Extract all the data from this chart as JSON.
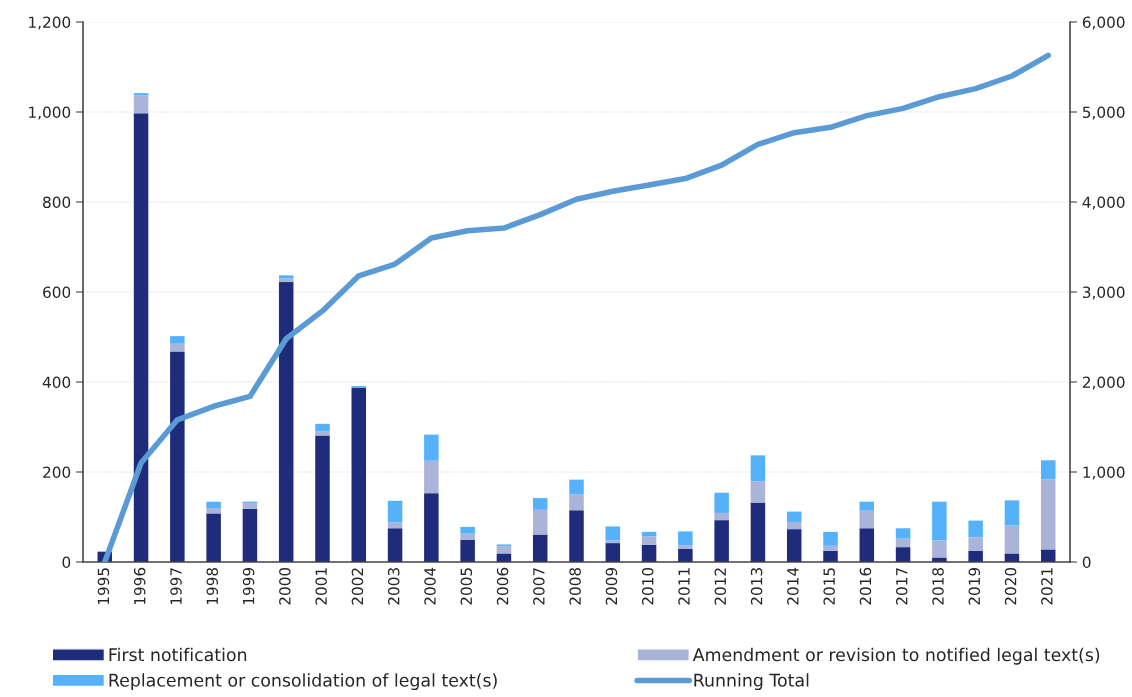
{
  "chart_data": {
    "type": "bar",
    "stacked": true,
    "categories": [
      "1995",
      "1996",
      "1997",
      "1998",
      "1999",
      "2000",
      "2001",
      "2002",
      "2003",
      "2004",
      "2005",
      "2006",
      "2007",
      "2008",
      "2009",
      "2010",
      "2011",
      "2012",
      "2013",
      "2014",
      "2015",
      "2016",
      "2017",
      "2018",
      "2019",
      "2020",
      "2021"
    ],
    "series": [
      {
        "name": "First notification",
        "color": "#1f2c7c",
        "values": [
          23,
          997,
          468,
          108,
          118,
          622,
          281,
          387,
          75,
          153,
          49,
          19,
          61,
          115,
          42,
          38,
          29,
          93,
          132,
          73,
          25,
          75,
          33,
          10,
          25,
          19,
          28
        ]
      },
      {
        "name": "Amendment or revision to notified legal text(s)",
        "color": "#a9b4d8",
        "values": [
          0,
          40,
          17,
          12,
          12,
          8,
          9,
          null,
          13,
          72,
          14,
          16,
          55,
          35,
          6,
          19,
          8,
          16,
          47,
          16,
          11,
          39,
          19,
          38,
          30,
          62,
          156
        ]
      },
      {
        "name": "Replacement or consolidation of legal text(s)",
        "color": "#55b1fa",
        "values": [
          0,
          5,
          17,
          14,
          4,
          7,
          17,
          4,
          48,
          58,
          15,
          4,
          26,
          33,
          31,
          10,
          31,
          45,
          58,
          23,
          31,
          20,
          23,
          86,
          37,
          56,
          42
        ]
      },
      {
        "name": "Running Total",
        "type": "line",
        "axis": "y2",
        "color": "#5b9bd5",
        "values": [
          0,
          1100,
          1580,
          1730,
          1840,
          2480,
          2790,
          3180,
          3310,
          3600,
          3680,
          3710,
          3860,
          4030,
          4120,
          4190,
          4260,
          4410,
          4640,
          4770,
          4830,
          4960,
          5040,
          5170,
          5260,
          5400,
          5630
        ]
      }
    ],
    "ylim": [
      0,
      1200
    ],
    "yticks": [
      0,
      200,
      400,
      600,
      800,
      {
        "value": 1000,
        "label": "1,000"
      },
      {
        "value": 1200,
        "label": "1,200"
      }
    ],
    "y2lim": [
      0,
      6000
    ],
    "y2ticks": [
      0,
      {
        "value": 1000,
        "label": "1,000"
      },
      {
        "value": 2000,
        "label": "2,000"
      },
      {
        "value": 3000,
        "label": "3,000"
      },
      {
        "value": 4000,
        "label": "4,000"
      },
      {
        "value": 5000,
        "label": "5,000"
      },
      {
        "value": 6000,
        "label": "6,000"
      }
    ],
    "grid": "y",
    "legend": "bottom"
  }
}
